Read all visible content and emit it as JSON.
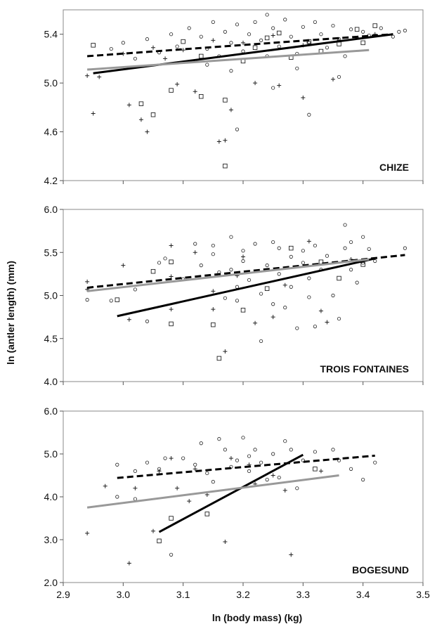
{
  "chart_data": {
    "type": "scatter",
    "xlabel": "ln (body mass) (kg)",
    "ylabel": "ln (antler length) (mm)",
    "x_ticks": [
      "2.9",
      "3.0",
      "3.1",
      "3.2",
      "3.3",
      "3.4",
      "3.5"
    ],
    "xlim": [
      2.9,
      3.5
    ],
    "line_styles": {
      "line_a": "#000000",
      "line_b": "#000000",
      "line_c": "#999999"
    },
    "panels": [
      {
        "label": "CHIZE",
        "ylim": [
          4.2,
          5.6
        ],
        "y_ticks": [
          "4.2",
          "4.6",
          "5.0",
          "5.4"
        ],
        "lines": [
          {
            "style": "dashed",
            "x": [
              2.94,
              3.45
            ],
            "y": [
              5.22,
              5.4
            ]
          },
          {
            "style": "solid-black",
            "x": [
              2.95,
              3.45
            ],
            "y": [
              5.08,
              5.4
            ]
          },
          {
            "style": "solid-grey",
            "x": [
              2.94,
              3.41
            ],
            "y": [
              5.11,
              5.27
            ]
          }
        ],
        "squares": [
          [
            2.95,
            5.31
          ],
          [
            3.03,
            4.83
          ],
          [
            3.05,
            4.74
          ],
          [
            3.08,
            4.94
          ],
          [
            3.13,
            4.89
          ],
          [
            3.13,
            5.22
          ],
          [
            3.17,
            4.86
          ],
          [
            3.17,
            4.32
          ],
          [
            3.2,
            5.18
          ],
          [
            3.22,
            5.29
          ],
          [
            3.24,
            5.37
          ],
          [
            3.28,
            5.21
          ],
          [
            3.31,
            5.34
          ],
          [
            3.33,
            5.26
          ],
          [
            3.36,
            5.32
          ],
          [
            3.39,
            5.44
          ],
          [
            3.4,
            5.33
          ],
          [
            3.42,
            5.47
          ],
          [
            3.1,
            5.34
          ],
          [
            3.26,
            5.41
          ]
        ],
        "crosses": [
          [
            2.94,
            5.06
          ],
          [
            2.96,
            5.05
          ],
          [
            2.95,
            4.75
          ],
          [
            3.01,
            4.82
          ],
          [
            3.03,
            4.7
          ],
          [
            3.04,
            4.6
          ],
          [
            3.09,
            4.99
          ],
          [
            3.12,
            4.93
          ],
          [
            3.16,
            4.52
          ],
          [
            3.17,
            4.53
          ],
          [
            3.18,
            4.78
          ],
          [
            3.22,
            5.0
          ],
          [
            3.26,
            4.98
          ],
          [
            3.3,
            4.88
          ],
          [
            3.35,
            5.03
          ],
          [
            3.0,
            5.24
          ],
          [
            3.05,
            5.29
          ],
          [
            3.1,
            5.27
          ],
          [
            3.15,
            5.35
          ],
          [
            3.2,
            5.33
          ],
          [
            3.25,
            5.39
          ],
          [
            3.3,
            5.31
          ],
          [
            3.36,
            5.35
          ],
          [
            3.42,
            5.4
          ],
          [
            3.07,
            5.2
          ]
        ],
        "circles": [
          [
            2.98,
            5.28
          ],
          [
            3.0,
            5.33
          ],
          [
            3.02,
            5.2
          ],
          [
            3.04,
            5.36
          ],
          [
            3.06,
            5.25
          ],
          [
            3.08,
            5.4
          ],
          [
            3.09,
            5.3
          ],
          [
            3.11,
            5.45
          ],
          [
            3.12,
            5.18
          ],
          [
            3.13,
            5.38
          ],
          [
            3.14,
            5.28
          ],
          [
            3.15,
            5.5
          ],
          [
            3.16,
            5.22
          ],
          [
            3.17,
            5.42
          ],
          [
            3.18,
            5.33
          ],
          [
            3.19,
            5.48
          ],
          [
            3.2,
            5.26
          ],
          [
            3.21,
            5.4
          ],
          [
            3.22,
            5.5
          ],
          [
            3.23,
            5.35
          ],
          [
            3.24,
            5.22
          ],
          [
            3.25,
            5.45
          ],
          [
            3.26,
            5.3
          ],
          [
            3.27,
            5.52
          ],
          [
            3.28,
            5.38
          ],
          [
            3.29,
            5.24
          ],
          [
            3.3,
            5.46
          ],
          [
            3.31,
            5.33
          ],
          [
            3.32,
            5.5
          ],
          [
            3.33,
            5.4
          ],
          [
            3.34,
            5.29
          ],
          [
            3.35,
            5.47
          ],
          [
            3.36,
            5.36
          ],
          [
            3.37,
            5.22
          ],
          [
            3.38,
            5.44
          ],
          [
            3.39,
            5.37
          ],
          [
            3.4,
            5.42
          ],
          [
            3.41,
            5.39
          ],
          [
            3.43,
            5.45
          ],
          [
            3.45,
            5.38
          ],
          [
            3.46,
            5.42
          ],
          [
            3.47,
            5.43
          ],
          [
            3.19,
            4.62
          ],
          [
            3.25,
            4.96
          ],
          [
            3.31,
            4.74
          ],
          [
            3.36,
            5.05
          ],
          [
            3.14,
            5.15
          ],
          [
            3.24,
            5.56
          ],
          [
            3.18,
            5.1
          ],
          [
            3.29,
            5.12
          ]
        ]
      },
      {
        "label": "TROIS FONTAINES",
        "ylim": [
          4.0,
          6.0
        ],
        "y_ticks": [
          "4.0",
          "4.5",
          "5.0",
          "5.5",
          "6.0"
        ],
        "lines": [
          {
            "style": "dashed",
            "x": [
              2.94,
              3.47
            ],
            "y": [
              5.09,
              5.47
            ]
          },
          {
            "style": "solid-black",
            "x": [
              2.99,
              3.42
            ],
            "y": [
              4.76,
              5.43
            ]
          },
          {
            "style": "solid-grey",
            "x": [
              2.94,
              3.41
            ],
            "y": [
              5.05,
              5.42
            ]
          }
        ],
        "squares": [
          [
            2.99,
            4.95
          ],
          [
            3.05,
            5.28
          ],
          [
            3.08,
            4.67
          ],
          [
            3.15,
            4.66
          ],
          [
            3.16,
            4.27
          ],
          [
            3.2,
            4.83
          ],
          [
            3.24,
            5.08
          ],
          [
            3.28,
            5.55
          ],
          [
            3.33,
            5.39
          ],
          [
            3.36,
            5.2
          ],
          [
            3.4,
            5.36
          ],
          [
            3.08,
            5.39
          ]
        ],
        "crosses": [
          [
            2.94,
            5.16
          ],
          [
            2.94,
            5.07
          ],
          [
            3.0,
            5.35
          ],
          [
            3.01,
            4.72
          ],
          [
            3.08,
            5.58
          ],
          [
            3.08,
            5.22
          ],
          [
            3.08,
            4.84
          ],
          [
            3.15,
            5.05
          ],
          [
            3.15,
            4.84
          ],
          [
            3.17,
            4.35
          ],
          [
            3.19,
            5.23
          ],
          [
            3.22,
            4.68
          ],
          [
            3.25,
            4.75
          ],
          [
            3.27,
            5.12
          ],
          [
            3.31,
            5.63
          ],
          [
            3.33,
            4.82
          ],
          [
            3.34,
            4.69
          ],
          [
            3.38,
            5.42
          ],
          [
            3.12,
            5.5
          ],
          [
            3.2,
            5.45
          ]
        ],
        "circles": [
          [
            2.94,
            4.95
          ],
          [
            2.98,
            4.94
          ],
          [
            3.02,
            5.07
          ],
          [
            3.04,
            4.7
          ],
          [
            3.06,
            5.38
          ],
          [
            3.07,
            5.43
          ],
          [
            3.1,
            5.19
          ],
          [
            3.12,
            5.6
          ],
          [
            3.13,
            5.35
          ],
          [
            3.15,
            5.48
          ],
          [
            3.15,
            5.58
          ],
          [
            3.16,
            5.27
          ],
          [
            3.17,
            4.97
          ],
          [
            3.18,
            5.68
          ],
          [
            3.18,
            5.3
          ],
          [
            3.19,
            5.1
          ],
          [
            3.19,
            4.94
          ],
          [
            3.2,
            5.52
          ],
          [
            3.2,
            5.4
          ],
          [
            3.21,
            5.18
          ],
          [
            3.22,
            5.6
          ],
          [
            3.23,
            5.02
          ],
          [
            3.23,
            4.47
          ],
          [
            3.24,
            5.35
          ],
          [
            3.25,
            5.62
          ],
          [
            3.25,
            4.9
          ],
          [
            3.26,
            5.25
          ],
          [
            3.26,
            5.55
          ],
          [
            3.27,
            4.86
          ],
          [
            3.28,
            5.45
          ],
          [
            3.28,
            5.1
          ],
          [
            3.29,
            4.62
          ],
          [
            3.3,
            5.52
          ],
          [
            3.3,
            5.38
          ],
          [
            3.31,
            5.2
          ],
          [
            3.31,
            4.98
          ],
          [
            3.32,
            5.58
          ],
          [
            3.32,
            4.64
          ],
          [
            3.33,
            5.3
          ],
          [
            3.34,
            5.46
          ],
          [
            3.35,
            5.0
          ],
          [
            3.36,
            4.73
          ],
          [
            3.37,
            5.55
          ],
          [
            3.37,
            5.82
          ],
          [
            3.38,
            5.62
          ],
          [
            3.38,
            5.3
          ],
          [
            3.39,
            5.15
          ],
          [
            3.4,
            5.38
          ],
          [
            3.4,
            5.68
          ],
          [
            3.41,
            5.54
          ],
          [
            3.42,
            5.4
          ],
          [
            3.47,
            5.55
          ]
        ]
      },
      {
        "label": "BOGESUND",
        "ylim": [
          2.0,
          6.0
        ],
        "y_ticks": [
          "2.0",
          "3.0",
          "4.0",
          "5.0",
          "6.0"
        ],
        "x_ticks_shown": true,
        "lines": [
          {
            "style": "dashed",
            "x": [
              2.99,
              3.42
            ],
            "y": [
              4.44,
              4.96
            ]
          },
          {
            "style": "solid-black",
            "x": [
              3.06,
              3.3
            ],
            "y": [
              3.18,
              4.98
            ]
          },
          {
            "style": "solid-grey",
            "x": [
              2.94,
              3.36
            ],
            "y": [
              3.75,
              4.5
            ]
          }
        ],
        "squares": [
          [
            3.06,
            2.97
          ],
          [
            3.08,
            3.5
          ],
          [
            3.14,
            3.6
          ],
          [
            3.32,
            4.65
          ]
        ],
        "crosses": [
          [
            2.94,
            3.15
          ],
          [
            2.97,
            4.25
          ],
          [
            3.01,
            2.45
          ],
          [
            3.02,
            4.2
          ],
          [
            3.05,
            3.2
          ],
          [
            3.08,
            4.9
          ],
          [
            3.09,
            4.2
          ],
          [
            3.11,
            3.9
          ],
          [
            3.14,
            4.05
          ],
          [
            3.17,
            2.95
          ],
          [
            3.18,
            4.9
          ],
          [
            3.21,
            4.75
          ],
          [
            3.22,
            4.3
          ],
          [
            3.25,
            4.5
          ],
          [
            3.27,
            4.15
          ],
          [
            3.28,
            2.65
          ],
          [
            3.33,
            4.6
          ],
          [
            3.12,
            4.65
          ],
          [
            3.06,
            4.6
          ]
        ],
        "circles": [
          [
            2.99,
            4.75
          ],
          [
            2.99,
            4.0
          ],
          [
            3.02,
            4.6
          ],
          [
            3.02,
            3.95
          ],
          [
            3.04,
            4.8
          ],
          [
            3.06,
            4.65
          ],
          [
            3.07,
            4.9
          ],
          [
            3.08,
            2.65
          ],
          [
            3.1,
            4.9
          ],
          [
            3.12,
            4.75
          ],
          [
            3.13,
            5.25
          ],
          [
            3.14,
            4.55
          ],
          [
            3.15,
            4.35
          ],
          [
            3.16,
            5.35
          ],
          [
            3.17,
            5.1
          ],
          [
            3.18,
            4.7
          ],
          [
            3.19,
            4.85
          ],
          [
            3.2,
            5.38
          ],
          [
            3.21,
            4.95
          ],
          [
            3.21,
            4.6
          ],
          [
            3.22,
            5.1
          ],
          [
            3.23,
            4.8
          ],
          [
            3.24,
            4.4
          ],
          [
            3.25,
            5.0
          ],
          [
            3.26,
            4.45
          ],
          [
            3.27,
            5.3
          ],
          [
            3.28,
            5.1
          ],
          [
            3.29,
            4.2
          ],
          [
            3.3,
            4.85
          ],
          [
            3.32,
            5.05
          ],
          [
            3.35,
            5.1
          ],
          [
            3.36,
            4.85
          ],
          [
            3.38,
            4.65
          ],
          [
            3.4,
            4.4
          ],
          [
            3.42,
            4.8
          ]
        ]
      }
    ]
  }
}
